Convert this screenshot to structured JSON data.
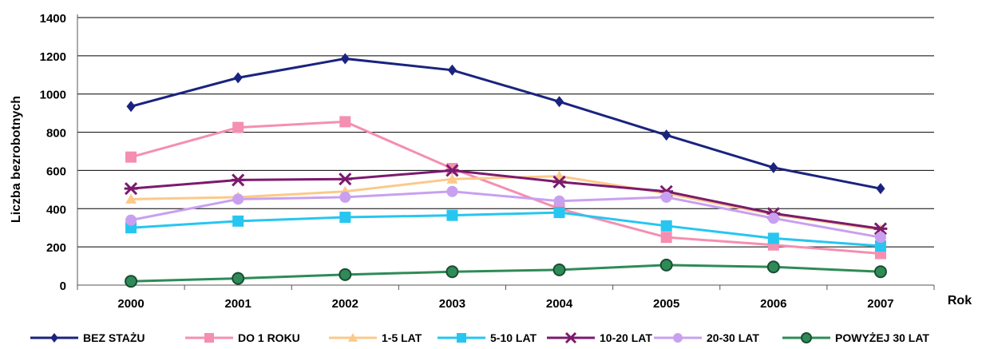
{
  "chart_data": {
    "type": "line",
    "title": "",
    "xlabel": "Rok",
    "ylabel": "Liczba bezrobotnych",
    "ylim": [
      0,
      1400
    ],
    "yticks": [
      0,
      200,
      400,
      600,
      800,
      1000,
      1200,
      1400
    ],
    "categories": [
      "2000",
      "2001",
      "2002",
      "2003",
      "2004",
      "2005",
      "2006",
      "2007"
    ],
    "grid": "horizontal",
    "legend_position": "bottom",
    "series": [
      {
        "name": "BEZ STAŻU",
        "color": "#1a237e",
        "marker": "diamond",
        "values": [
          935,
          1085,
          1185,
          1125,
          960,
          785,
          615,
          505
        ]
      },
      {
        "name": "DO 1 ROKU",
        "color": "#f48fb1",
        "marker": "square",
        "values": [
          670,
          825,
          855,
          610,
          400,
          250,
          210,
          165
        ]
      },
      {
        "name": "1-5 LAT",
        "color": "#fbc98a",
        "marker": "triangle",
        "values": [
          450,
          460,
          490,
          555,
          570,
          480,
          370,
          290
        ]
      },
      {
        "name": "5-10 LAT",
        "color": "#26c6f0",
        "marker": "square",
        "values": [
          300,
          335,
          355,
          365,
          380,
          310,
          245,
          205
        ]
      },
      {
        "name": "10-20 LAT",
        "color": "#7b1a6e",
        "marker": "star",
        "values": [
          505,
          550,
          555,
          600,
          540,
          490,
          375,
          295
        ]
      },
      {
        "name": "20-30 LAT",
        "color": "#c9a0f0",
        "marker": "circle",
        "values": [
          340,
          450,
          460,
          490,
          440,
          460,
          350,
          250
        ]
      },
      {
        "name": "POWYŻEJ 30 LAT",
        "color": "#2e8b57",
        "marker": "circle-dark",
        "values": [
          20,
          35,
          55,
          70,
          80,
          105,
          95,
          70
        ]
      }
    ]
  }
}
